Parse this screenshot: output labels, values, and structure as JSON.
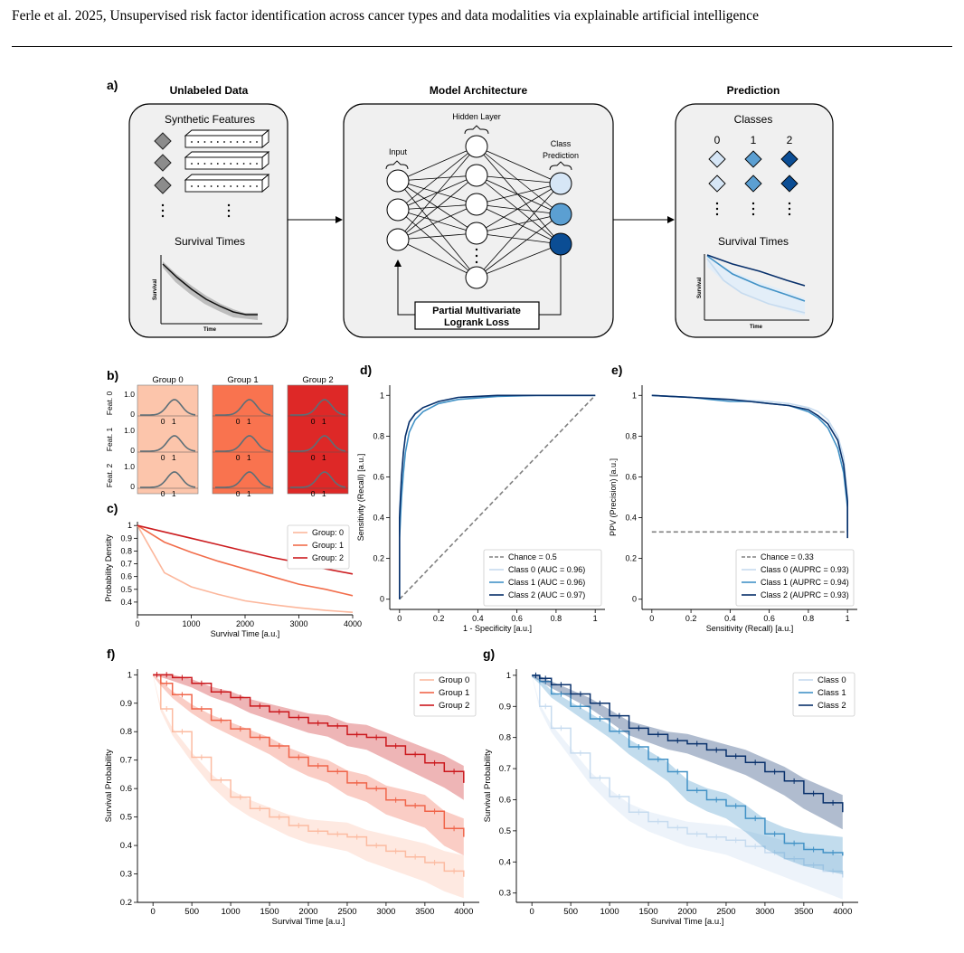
{
  "header": {
    "citation": "Ferle et al. 2025,",
    "title": "Unsupervised risk factor identification across cancer types and data modalities via explainable artificial intelligence"
  },
  "panel_labels": {
    "a": "a)",
    "b": "b)",
    "c": "c)",
    "d": "d)",
    "e": "e)",
    "f": "f)",
    "g": "g)"
  },
  "panel_a": {
    "unlabeled": {
      "heading": "Unlabeled Data",
      "features_label": "Synthetic Features",
      "survival_label": "Survival Times",
      "ylabel": "Survival",
      "xlabel": "Time"
    },
    "model": {
      "heading": "Model Architecture",
      "hidden_label": "Hidden Layer",
      "input_label": "Input",
      "class_label_1": "Class",
      "class_label_2": "Prediction",
      "loss_label_1": "Partial Multivariate",
      "loss_label_2": "Logrank Loss"
    },
    "prediction": {
      "heading": "Prediction",
      "classes_label": "Classes",
      "class_ids": [
        "0",
        "1",
        "2"
      ],
      "survival_label": "Survival Times",
      "ylabel": "Survival",
      "xlabel": "Time"
    },
    "class_colors": [
      "#d6e6f6",
      "#5b9fd2",
      "#0b4d94"
    ]
  },
  "panel_b": {
    "groups": [
      "Group 0",
      "Group 1",
      "Group 2"
    ],
    "features": [
      "Feat. 0",
      "Feat. 1",
      "Feat. 2"
    ],
    "ytick_top": "1.0",
    "ytick_bottom": "0",
    "xticks": [
      "0",
      "1"
    ],
    "colors": [
      "#fcc5ab",
      "#f9734f",
      "#de2827"
    ]
  },
  "chart_data": [
    {
      "id": "c",
      "type": "line",
      "title": "",
      "xlabel": "Survival Time [a.u.]",
      "ylabel": "Probability Density",
      "xlim": [
        0,
        4000
      ],
      "ylim": [
        0.3,
        1.03
      ],
      "xticks": [
        0,
        1000,
        2000,
        3000,
        4000
      ],
      "yticks": [
        0.4,
        0.5,
        0.6,
        0.7,
        0.8,
        0.9,
        1.0
      ],
      "legend": "top-right",
      "x": [
        0,
        500,
        1000,
        1500,
        2000,
        2500,
        3000,
        3500,
        4000
      ],
      "series": [
        {
          "name": "Group: 0",
          "color": "#fcb79c",
          "values": [
            1.0,
            0.63,
            0.52,
            0.46,
            0.41,
            0.38,
            0.355,
            0.335,
            0.32
          ]
        },
        {
          "name": "Group: 1",
          "color": "#f26d4b",
          "values": [
            1.0,
            0.87,
            0.79,
            0.72,
            0.66,
            0.6,
            0.54,
            0.5,
            0.45
          ]
        },
        {
          "name": "Group: 2",
          "color": "#cc1d20",
          "values": [
            1.0,
            0.95,
            0.9,
            0.85,
            0.8,
            0.75,
            0.71,
            0.66,
            0.62
          ]
        }
      ]
    },
    {
      "id": "d",
      "type": "line",
      "title": "",
      "xlabel": "1 - Specificity [a.u.]",
      "ylabel": "Sensitivity (Recall) [a.u.]",
      "xlim": [
        -0.05,
        1.05
      ],
      "ylim": [
        -0.05,
        1.05
      ],
      "xticks": [
        0.0,
        0.2,
        0.4,
        0.6,
        0.8,
        1.0
      ],
      "yticks": [
        0.0,
        0.2,
        0.4,
        0.6,
        0.8,
        1.0
      ],
      "legend": "bottom-right",
      "series": [
        {
          "name": "Chance = 0.5",
          "color": "#808080",
          "dashed": true,
          "x": [
            0,
            1
          ],
          "values": [
            0,
            1
          ]
        },
        {
          "name": "Class 0 (AUC = 0.96)",
          "color": "#c6dbef",
          "x": [
            0,
            0,
            0.01,
            0.02,
            0.03,
            0.05,
            0.08,
            0.12,
            0.2,
            0.3,
            0.5,
            0.7,
            1.0
          ],
          "values": [
            0,
            0.45,
            0.62,
            0.72,
            0.8,
            0.87,
            0.91,
            0.94,
            0.97,
            0.99,
            1.0,
            1.0,
            1.0
          ]
        },
        {
          "name": "Class 1 (AUC = 0.96)",
          "color": "#4292c6",
          "x": [
            0,
            0,
            0.01,
            0.02,
            0.03,
            0.05,
            0.08,
            0.12,
            0.2,
            0.3,
            0.5,
            0.7,
            1.0
          ],
          "values": [
            0,
            0.3,
            0.5,
            0.62,
            0.72,
            0.82,
            0.88,
            0.92,
            0.96,
            0.98,
            0.995,
            1.0,
            1.0
          ]
        },
        {
          "name": "Class 2 (AUC = 0.97)",
          "color": "#08306b",
          "x": [
            0,
            0,
            0.01,
            0.02,
            0.03,
            0.05,
            0.08,
            0.12,
            0.2,
            0.3,
            0.5,
            0.7,
            1.0
          ],
          "values": [
            0,
            0.4,
            0.6,
            0.72,
            0.8,
            0.87,
            0.91,
            0.94,
            0.97,
            0.99,
            1.0,
            1.0,
            1.0
          ]
        }
      ]
    },
    {
      "id": "e",
      "type": "line",
      "title": "",
      "xlabel": "Sensitivity (Recall) [a.u.]",
      "ylabel": "PPV (Precision) [a.u.]",
      "xlim": [
        -0.05,
        1.05
      ],
      "ylim": [
        -0.05,
        1.05
      ],
      "xticks": [
        0.0,
        0.2,
        0.4,
        0.6,
        0.8,
        1.0
      ],
      "yticks": [
        0.0,
        0.2,
        0.4,
        0.6,
        0.8,
        1.0
      ],
      "legend": "bottom-right",
      "series": [
        {
          "name": "Chance = 0.33",
          "color": "#808080",
          "dashed": true,
          "x": [
            0,
            1
          ],
          "values": [
            0.33,
            0.33
          ]
        },
        {
          "name": "Class 0 (AUPRC = 0.93)",
          "color": "#c6dbef",
          "x": [
            0,
            0.1,
            0.2,
            0.3,
            0.4,
            0.5,
            0.6,
            0.7,
            0.8,
            0.85,
            0.9,
            0.95,
            0.98,
            1.0,
            1.0
          ],
          "values": [
            1.0,
            0.995,
            0.99,
            0.985,
            0.98,
            0.975,
            0.97,
            0.96,
            0.94,
            0.92,
            0.88,
            0.8,
            0.7,
            0.5,
            0.33
          ]
        },
        {
          "name": "Class 1 (AUPRC = 0.94)",
          "color": "#4292c6",
          "x": [
            0,
            0.1,
            0.2,
            0.3,
            0.4,
            0.5,
            0.6,
            0.7,
            0.8,
            0.85,
            0.9,
            0.95,
            0.98,
            1.0,
            1.0
          ],
          "values": [
            1.0,
            0.995,
            0.99,
            0.98,
            0.97,
            0.97,
            0.96,
            0.95,
            0.92,
            0.89,
            0.84,
            0.74,
            0.62,
            0.45,
            0.33
          ]
        },
        {
          "name": "Class 2 (AUPRC = 0.93)",
          "color": "#08306b",
          "x": [
            0,
            0.1,
            0.2,
            0.3,
            0.4,
            0.5,
            0.6,
            0.7,
            0.8,
            0.85,
            0.9,
            0.95,
            0.98,
            1.0,
            1.0
          ],
          "values": [
            1.0,
            0.995,
            0.99,
            0.985,
            0.98,
            0.97,
            0.96,
            0.95,
            0.93,
            0.9,
            0.86,
            0.78,
            0.66,
            0.48,
            0.3
          ]
        }
      ]
    },
    {
      "id": "f",
      "type": "line",
      "title": "",
      "xlabel": "Survival Time [a.u.]",
      "ylabel": "Survival Probability",
      "xlim": [
        -200,
        4200
      ],
      "ylim": [
        0.2,
        1.02
      ],
      "xticks": [
        0,
        500,
        1000,
        1500,
        2000,
        2500,
        3000,
        3500,
        4000
      ],
      "yticks": [
        0.2,
        0.3,
        0.4,
        0.5,
        0.6,
        0.7,
        0.8,
        0.9,
        1.0
      ],
      "legend": "top-right",
      "x": [
        0,
        100,
        250,
        500,
        750,
        1000,
        1250,
        1500,
        1750,
        2000,
        2250,
        2500,
        2750,
        3000,
        3250,
        3500,
        3750,
        4000
      ],
      "series": [
        {
          "name": "Group 0",
          "color": "#fcbba1",
          "band": 0.07,
          "values": [
            1.0,
            0.88,
            0.8,
            0.71,
            0.63,
            0.57,
            0.53,
            0.5,
            0.47,
            0.45,
            0.44,
            0.43,
            0.4,
            0.38,
            0.36,
            0.34,
            0.31,
            0.29
          ]
        },
        {
          "name": "Group 1",
          "color": "#f0654a",
          "band": 0.06,
          "values": [
            1.0,
            0.97,
            0.93,
            0.88,
            0.84,
            0.81,
            0.78,
            0.75,
            0.71,
            0.68,
            0.66,
            0.62,
            0.6,
            0.56,
            0.54,
            0.52,
            0.46,
            0.43
          ]
        },
        {
          "name": "Group 2",
          "color": "#cb181d",
          "band": 0.055,
          "values": [
            1.0,
            1.0,
            0.99,
            0.97,
            0.94,
            0.92,
            0.89,
            0.87,
            0.85,
            0.83,
            0.82,
            0.79,
            0.78,
            0.75,
            0.72,
            0.69,
            0.66,
            0.62
          ]
        }
      ]
    },
    {
      "id": "g",
      "type": "line",
      "title": "",
      "xlabel": "Survival Time [a.u.]",
      "ylabel": "Survival Probability",
      "xlim": [
        -200,
        4200
      ],
      "ylim": [
        0.27,
        1.02
      ],
      "xticks": [
        0,
        500,
        1000,
        1500,
        2000,
        2500,
        3000,
        3500,
        4000
      ],
      "yticks": [
        0.3,
        0.4,
        0.5,
        0.6,
        0.7,
        0.8,
        0.9,
        1.0
      ],
      "legend": "top-right",
      "x": [
        0,
        100,
        250,
        500,
        750,
        1000,
        1250,
        1500,
        1750,
        2000,
        2250,
        2500,
        2750,
        3000,
        3250,
        3500,
        3750,
        4000
      ],
      "series": [
        {
          "name": "Class 0",
          "color": "#c6dbef",
          "band": 0.065,
          "values": [
            1.0,
            0.9,
            0.83,
            0.75,
            0.67,
            0.61,
            0.56,
            0.53,
            0.51,
            0.49,
            0.48,
            0.47,
            0.45,
            0.43,
            0.41,
            0.39,
            0.37,
            0.35
          ]
        },
        {
          "name": "Class 1",
          "color": "#4292c6",
          "band": 0.055,
          "values": [
            1.0,
            0.98,
            0.94,
            0.9,
            0.86,
            0.82,
            0.77,
            0.73,
            0.69,
            0.63,
            0.6,
            0.58,
            0.54,
            0.49,
            0.46,
            0.44,
            0.43,
            0.42
          ]
        },
        {
          "name": "Class 2",
          "color": "#08306b",
          "band": 0.05,
          "values": [
            1.0,
            0.99,
            0.97,
            0.94,
            0.91,
            0.87,
            0.83,
            0.81,
            0.79,
            0.78,
            0.76,
            0.74,
            0.72,
            0.69,
            0.66,
            0.62,
            0.59,
            0.56
          ]
        }
      ]
    }
  ]
}
